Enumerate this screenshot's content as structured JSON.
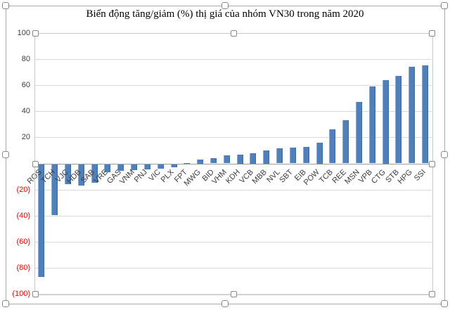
{
  "title": "Biến động tăng/giảm (%) thị giá của nhóm VN30 trong năm 2020",
  "state": {
    "chart_selected": true,
    "plot_area_selected": true
  },
  "colors": {
    "bar": "#4d80bd",
    "bar_edge_light": "#8fb0d9",
    "bar_edge_dark": "#3a689e",
    "gridline": "#d9d9d9",
    "axis_line": "#9b9b9b",
    "tick_positive": "#404040",
    "tick_negative": "#ff0000",
    "chart_border": "#ababab"
  },
  "chart_data": {
    "type": "bar",
    "title": "Biến động tăng/giảm (%) thị giá của nhóm VN30 trong năm 2020",
    "xlabel": "",
    "ylabel": "",
    "ylim": [
      -100,
      100
    ],
    "ytick_interval": 20,
    "yticks": [
      100,
      80,
      60,
      40,
      20,
      0,
      -20,
      -40,
      -60,
      -80,
      -100
    ],
    "negative_tick_format": "parentheses_red",
    "zero_tick_label_hidden": true,
    "grid": true,
    "legend_position": "none",
    "category_label_rotation_deg": 45,
    "categories": [
      "ROS",
      "TCH",
      "VJC",
      "HDB",
      "SAB",
      "VRE",
      "GAS",
      "VNM",
      "PNJ",
      "VIC",
      "PLX",
      "FPT",
      "MWG",
      "BID",
      "VHM",
      "KDH",
      "VCB",
      "MBB",
      "NVL",
      "SBT",
      "EIB",
      "POW",
      "TCB",
      "REE",
      "MSN",
      "VPB",
      "CTG",
      "STB",
      "HPG",
      "SSI"
    ],
    "values": [
      -86,
      -39,
      -15,
      -16,
      -14,
      -6,
      -5,
      -4.5,
      -4,
      -3,
      -2,
      0.5,
      3,
      4,
      6,
      7,
      8,
      10,
      11.5,
      12,
      12.5,
      16,
      26,
      33,
      47,
      59,
      64,
      67,
      74,
      75
    ]
  }
}
